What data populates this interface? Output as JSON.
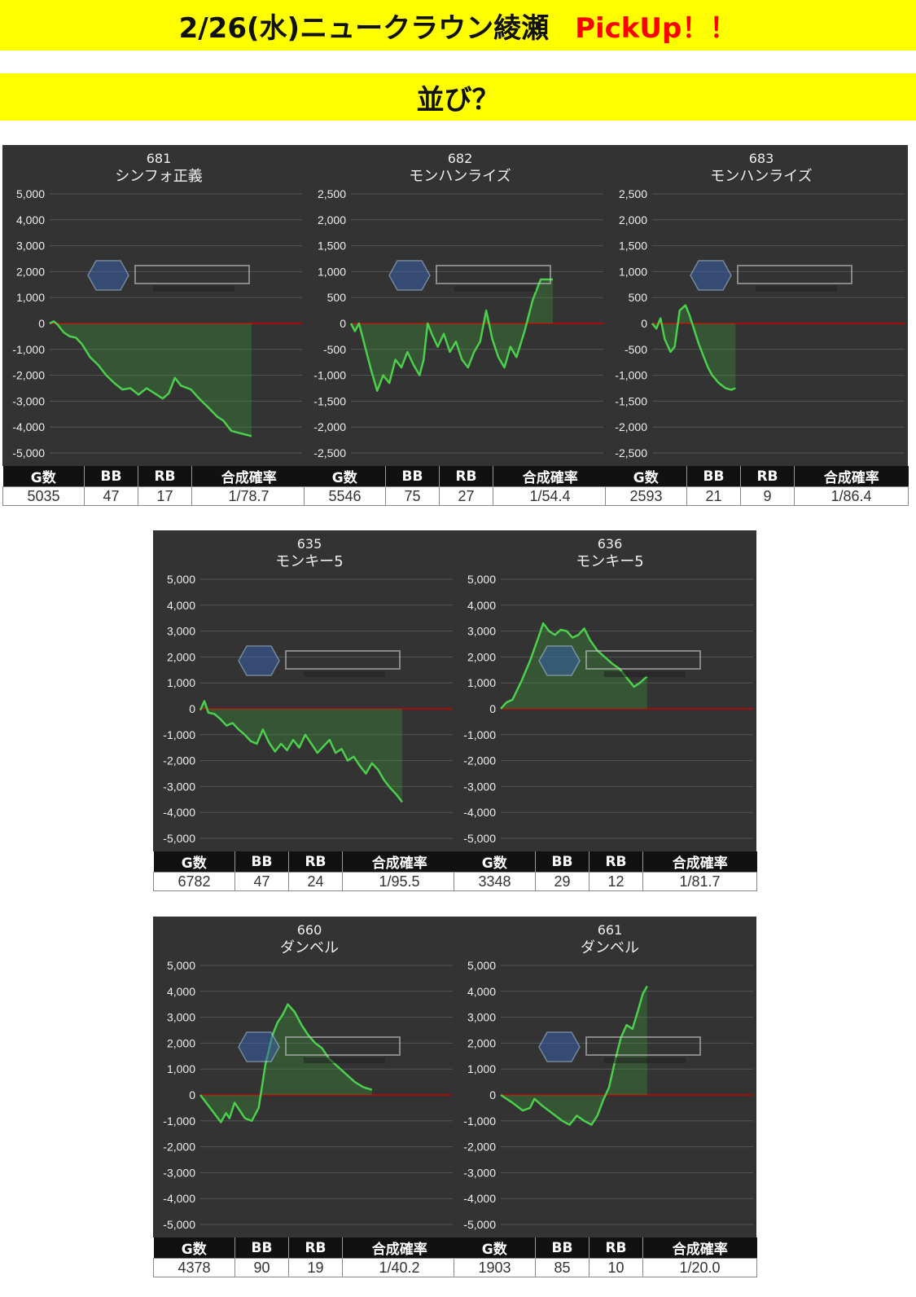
{
  "header": {
    "title": "2/26(水)ニュークラウン綾瀬",
    "pickup": "PickUp！！",
    "subtitle": "並び？"
  },
  "table_headers": [
    "G数",
    "BB",
    "RB",
    "合成確率"
  ],
  "colors": {
    "background": "#333333",
    "line": "#4ccf4c",
    "zero_line": "#cc0000",
    "banner": "#ffff00"
  },
  "chart_data": [
    {
      "type": "area",
      "machine_no": "681",
      "machine_name": "シンフォ正義",
      "ylim": [
        -5000,
        5000
      ],
      "ticks": [
        5000,
        4000,
        3000,
        2000,
        1000,
        0,
        -1000,
        -2000,
        -3000,
        -4000,
        -5000
      ],
      "stats": {
        "games": "5035",
        "bb": "47",
        "rb": "17",
        "rate": "1/78.7"
      },
      "points": [
        [
          0,
          0
        ],
        [
          0.02,
          80
        ],
        [
          0.04,
          -50
        ],
        [
          0.07,
          -350
        ],
        [
          0.1,
          -500
        ],
        [
          0.13,
          -550
        ],
        [
          0.16,
          -800
        ],
        [
          0.2,
          -1300
        ],
        [
          0.24,
          -1600
        ],
        [
          0.28,
          -2000
        ],
        [
          0.32,
          -2300
        ],
        [
          0.36,
          -2550
        ],
        [
          0.4,
          -2500
        ],
        [
          0.44,
          -2750
        ],
        [
          0.48,
          -2500
        ],
        [
          0.52,
          -2700
        ],
        [
          0.56,
          -2900
        ],
        [
          0.59,
          -2700
        ],
        [
          0.62,
          -2100
        ],
        [
          0.65,
          -2400
        ],
        [
          0.7,
          -2550
        ],
        [
          0.74,
          -2900
        ],
        [
          0.78,
          -3200
        ],
        [
          0.83,
          -3600
        ],
        [
          0.86,
          -3750
        ],
        [
          0.9,
          -4150
        ],
        [
          0.95,
          -4250
        ],
        [
          1,
          -4350
        ]
      ]
    },
    {
      "type": "area",
      "machine_no": "682",
      "machine_name": "モンハンライズ",
      "ylim": [
        -2500,
        2500
      ],
      "ticks": [
        2500,
        2000,
        1500,
        1000,
        500,
        0,
        -500,
        -1000,
        -1500,
        -2000,
        -2500
      ],
      "stats": {
        "games": "5546",
        "bb": "75",
        "rb": "27",
        "rate": "1/54.4"
      },
      "points": [
        [
          0,
          0
        ],
        [
          0.02,
          -150
        ],
        [
          0.04,
          0
        ],
        [
          0.07,
          -450
        ],
        [
          0.1,
          -900
        ],
        [
          0.13,
          -1300
        ],
        [
          0.16,
          -1000
        ],
        [
          0.19,
          -1150
        ],
        [
          0.22,
          -700
        ],
        [
          0.25,
          -850
        ],
        [
          0.28,
          -550
        ],
        [
          0.31,
          -800
        ],
        [
          0.34,
          -1000
        ],
        [
          0.36,
          -700
        ],
        [
          0.38,
          0
        ],
        [
          0.4,
          -200
        ],
        [
          0.43,
          -450
        ],
        [
          0.46,
          -200
        ],
        [
          0.49,
          -550
        ],
        [
          0.52,
          -350
        ],
        [
          0.55,
          -700
        ],
        [
          0.58,
          -850
        ],
        [
          0.61,
          -550
        ],
        [
          0.64,
          -350
        ],
        [
          0.67,
          250
        ],
        [
          0.7,
          -300
        ],
        [
          0.73,
          -650
        ],
        [
          0.76,
          -850
        ],
        [
          0.79,
          -450
        ],
        [
          0.82,
          -650
        ],
        [
          0.86,
          -150
        ],
        [
          0.9,
          450
        ],
        [
          0.94,
          850
        ],
        [
          1,
          850
        ]
      ]
    },
    {
      "type": "area",
      "machine_no": "683",
      "machine_name": "モンハンライズ",
      "ylim": [
        -2500,
        2500
      ],
      "ticks": [
        2500,
        2000,
        1500,
        1000,
        500,
        0,
        -500,
        -1000,
        -1500,
        -2000,
        -2500
      ],
      "stats": {
        "games": "2593",
        "bb": "21",
        "rb": "9",
        "rate": "1/86.4"
      },
      "points": [
        [
          0,
          0
        ],
        [
          0.05,
          -100
        ],
        [
          0.1,
          100
        ],
        [
          0.15,
          -300
        ],
        [
          0.22,
          -550
        ],
        [
          0.27,
          -450
        ],
        [
          0.33,
          250
        ],
        [
          0.4,
          350
        ],
        [
          0.45,
          150
        ],
        [
          0.5,
          -100
        ],
        [
          0.56,
          -400
        ],
        [
          0.62,
          -650
        ],
        [
          0.67,
          -850
        ],
        [
          0.72,
          -1000
        ],
        [
          0.8,
          -1150
        ],
        [
          0.88,
          -1250
        ],
        [
          0.95,
          -1280
        ],
        [
          1,
          -1250
        ]
      ]
    },
    {
      "type": "area",
      "machine_no": "635",
      "machine_name": "モンキー5",
      "ylim": [
        -5000,
        5000
      ],
      "ticks": [
        5000,
        4000,
        3000,
        2000,
        1000,
        0,
        -1000,
        -2000,
        -3000,
        -4000,
        -5000
      ],
      "stats": {
        "games": "6782",
        "bb": "47",
        "rb": "24",
        "rate": "1/95.5"
      },
      "points": [
        [
          0,
          -50
        ],
        [
          0.02,
          300
        ],
        [
          0.04,
          -150
        ],
        [
          0.07,
          -200
        ],
        [
          0.1,
          -400
        ],
        [
          0.13,
          -650
        ],
        [
          0.16,
          -550
        ],
        [
          0.19,
          -800
        ],
        [
          0.22,
          -1000
        ],
        [
          0.25,
          -1250
        ],
        [
          0.28,
          -1350
        ],
        [
          0.31,
          -800
        ],
        [
          0.34,
          -1300
        ],
        [
          0.37,
          -1650
        ],
        [
          0.4,
          -1350
        ],
        [
          0.43,
          -1600
        ],
        [
          0.46,
          -1200
        ],
        [
          0.49,
          -1500
        ],
        [
          0.52,
          -1000
        ],
        [
          0.55,
          -1350
        ],
        [
          0.58,
          -1700
        ],
        [
          0.61,
          -1450
        ],
        [
          0.64,
          -1200
        ],
        [
          0.67,
          -1700
        ],
        [
          0.7,
          -1550
        ],
        [
          0.73,
          -2000
        ],
        [
          0.76,
          -1850
        ],
        [
          0.79,
          -2200
        ],
        [
          0.82,
          -2500
        ],
        [
          0.85,
          -2100
        ],
        [
          0.88,
          -2350
        ],
        [
          0.91,
          -2750
        ],
        [
          0.94,
          -3050
        ],
        [
          0.97,
          -3300
        ],
        [
          1,
          -3600
        ]
      ]
    },
    {
      "type": "area",
      "machine_no": "636",
      "machine_name": "モンキー5",
      "ylim": [
        -5000,
        5000
      ],
      "ticks": [
        5000,
        4000,
        3000,
        2000,
        1000,
        0,
        -1000,
        -2000,
        -3000,
        -4000,
        -5000
      ],
      "stats": {
        "games": "3348",
        "bb": "29",
        "rb": "12",
        "rate": "1/81.7"
      },
      "points": [
        [
          0,
          0
        ],
        [
          0.04,
          250
        ],
        [
          0.08,
          350
        ],
        [
          0.14,
          1050
        ],
        [
          0.2,
          1850
        ],
        [
          0.26,
          2800
        ],
        [
          0.29,
          3300
        ],
        [
          0.33,
          3000
        ],
        [
          0.37,
          2850
        ],
        [
          0.41,
          3050
        ],
        [
          0.45,
          3000
        ],
        [
          0.49,
          2750
        ],
        [
          0.53,
          2850
        ],
        [
          0.57,
          3100
        ],
        [
          0.61,
          2650
        ],
        [
          0.66,
          2250
        ],
        [
          0.71,
          2000
        ],
        [
          0.76,
          1750
        ],
        [
          0.81,
          1550
        ],
        [
          0.86,
          1200
        ],
        [
          0.91,
          850
        ],
        [
          0.95,
          1000
        ],
        [
          1,
          1250
        ]
      ]
    },
    {
      "type": "area",
      "machine_no": "660",
      "machine_name": "ダンベル",
      "ylim": [
        -5000,
        5000
      ],
      "ticks": [
        5000,
        4000,
        3000,
        2000,
        1000,
        0,
        -1000,
        -2000,
        -3000,
        -4000,
        -5000
      ],
      "stats": {
        "games": "4378",
        "bb": "90",
        "rb": "19",
        "rate": "1/40.2"
      },
      "points": [
        [
          0,
          0
        ],
        [
          0.04,
          -350
        ],
        [
          0.08,
          -700
        ],
        [
          0.12,
          -1050
        ],
        [
          0.15,
          -700
        ],
        [
          0.17,
          -900
        ],
        [
          0.2,
          -300
        ],
        [
          0.23,
          -600
        ],
        [
          0.26,
          -900
        ],
        [
          0.3,
          -1000
        ],
        [
          0.34,
          -500
        ],
        [
          0.38,
          1200
        ],
        [
          0.42,
          2300
        ],
        [
          0.45,
          2800
        ],
        [
          0.48,
          3100
        ],
        [
          0.51,
          3500
        ],
        [
          0.55,
          3200
        ],
        [
          0.59,
          2700
        ],
        [
          0.63,
          2300
        ],
        [
          0.67,
          2000
        ],
        [
          0.71,
          1800
        ],
        [
          0.75,
          1400
        ],
        [
          0.8,
          1100
        ],
        [
          0.85,
          800
        ],
        [
          0.9,
          500
        ],
        [
          0.95,
          300
        ],
        [
          1,
          200
        ]
      ]
    },
    {
      "type": "area",
      "machine_no": "661",
      "machine_name": "ダンベル",
      "ylim": [
        -5000,
        5000
      ],
      "ticks": [
        5000,
        4000,
        3000,
        2000,
        1000,
        0,
        -1000,
        -2000,
        -3000,
        -4000,
        -5000
      ],
      "stats": {
        "games": "1903",
        "bb": "85",
        "rb": "10",
        "rate": "1/20.0"
      },
      "points": [
        [
          0,
          0
        ],
        [
          0.08,
          -300
        ],
        [
          0.15,
          -600
        ],
        [
          0.2,
          -500
        ],
        [
          0.23,
          -150
        ],
        [
          0.28,
          -400
        ],
        [
          0.35,
          -700
        ],
        [
          0.42,
          -1000
        ],
        [
          0.47,
          -1150
        ],
        [
          0.52,
          -800
        ],
        [
          0.57,
          -1000
        ],
        [
          0.62,
          -1150
        ],
        [
          0.66,
          -800
        ],
        [
          0.7,
          -200
        ],
        [
          0.74,
          300
        ],
        [
          0.78,
          1300
        ],
        [
          0.82,
          2200
        ],
        [
          0.86,
          2700
        ],
        [
          0.9,
          2550
        ],
        [
          0.94,
          3300
        ],
        [
          0.97,
          3900
        ],
        [
          1,
          4200
        ]
      ]
    }
  ]
}
